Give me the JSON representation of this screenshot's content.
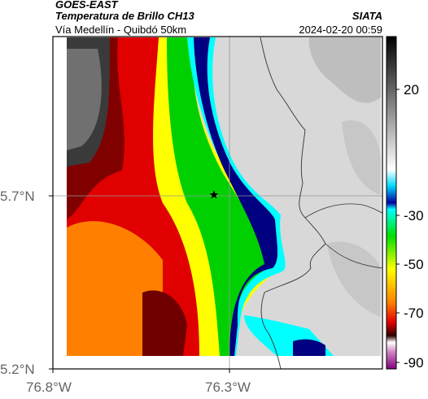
{
  "header": {
    "satellite": "GOES-EAST",
    "product": "Temperatura de Brillo CH13",
    "organization": "SIATA",
    "subtitle": "Vía Medellín - Quibdó 50km",
    "datetime": "2024-02-20 00:59"
  },
  "map": {
    "lat_ticks": [
      "5.7°N",
      "5.2°N"
    ],
    "lon_ticks": [
      "76.8°W",
      "76.3°W"
    ],
    "marker_icon": "star-icon"
  },
  "colorbar": {
    "tick_labels": [
      "20",
      "-30",
      "-50",
      "-70",
      "-90"
    ]
  },
  "colors": {
    "warm_land": "#d8d8d8",
    "cold_tops": "#000080",
    "cyan": "#00ffff",
    "green": "#00d000",
    "yellow": "#ffff00",
    "red": "#e00000"
  }
}
